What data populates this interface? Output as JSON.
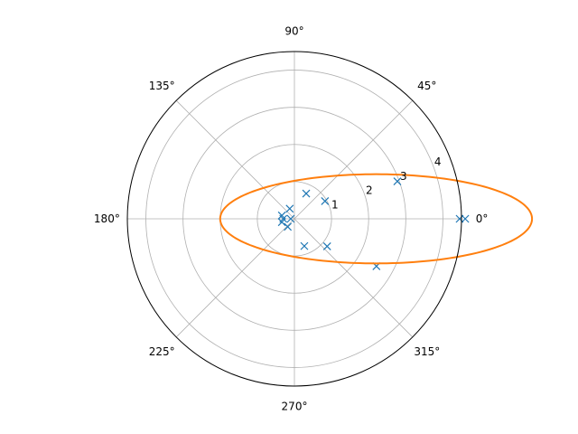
{
  "chart_data": {
    "type": "scatter",
    "projection": "polar",
    "theta_unit": "degrees",
    "angle_ticks": [
      {
        "angle": 0,
        "label": "0°"
      },
      {
        "angle": 45,
        "label": "45°"
      },
      {
        "angle": 90,
        "label": "90°"
      },
      {
        "angle": 135,
        "label": "135°"
      },
      {
        "angle": 180,
        "label": "180°"
      },
      {
        "angle": 225,
        "label": "225°"
      },
      {
        "angle": 270,
        "label": "270°"
      },
      {
        "angle": 315,
        "label": "315°"
      }
    ],
    "radial_ticks": [
      {
        "value": 1,
        "label": "1"
      },
      {
        "value": 2,
        "label": "2"
      },
      {
        "value": 3,
        "label": "3"
      },
      {
        "value": 4,
        "label": "4"
      }
    ],
    "rlim": [
      0,
      4.5
    ],
    "rlabel_position_deg": 22.5,
    "grid": true,
    "series": [
      {
        "kind": "markers",
        "marker": "x",
        "color": "#1f77b4",
        "points": [
          {
            "theta": 0,
            "r": 4.45
          },
          {
            "theta": 0,
            "r": 4.6
          },
          {
            "theta": 20,
            "r": 2.95
          },
          {
            "theta": 30,
            "r": 0.95
          },
          {
            "theta": 65,
            "r": 0.75
          },
          {
            "theta": 115,
            "r": 0.3
          },
          {
            "theta": 165,
            "r": 0.35
          },
          {
            "theta": 180,
            "r": 0.3
          },
          {
            "theta": 195,
            "r": 0.35
          },
          {
            "theta": 230,
            "r": 0.28
          },
          {
            "theta": 290,
            "r": 0.78
          },
          {
            "theta": 320,
            "r": 1.15
          },
          {
            "theta": 330,
            "r": 2.55
          },
          {
            "theta": 180,
            "r": 0.1
          }
        ]
      },
      {
        "kind": "line",
        "curve": "ellipse",
        "color": "#ff7f0e",
        "curve_params": {
          "a": 4.2,
          "b": 1.2,
          "center_x": 2.2,
          "center_y": 0
        }
      }
    ]
  }
}
